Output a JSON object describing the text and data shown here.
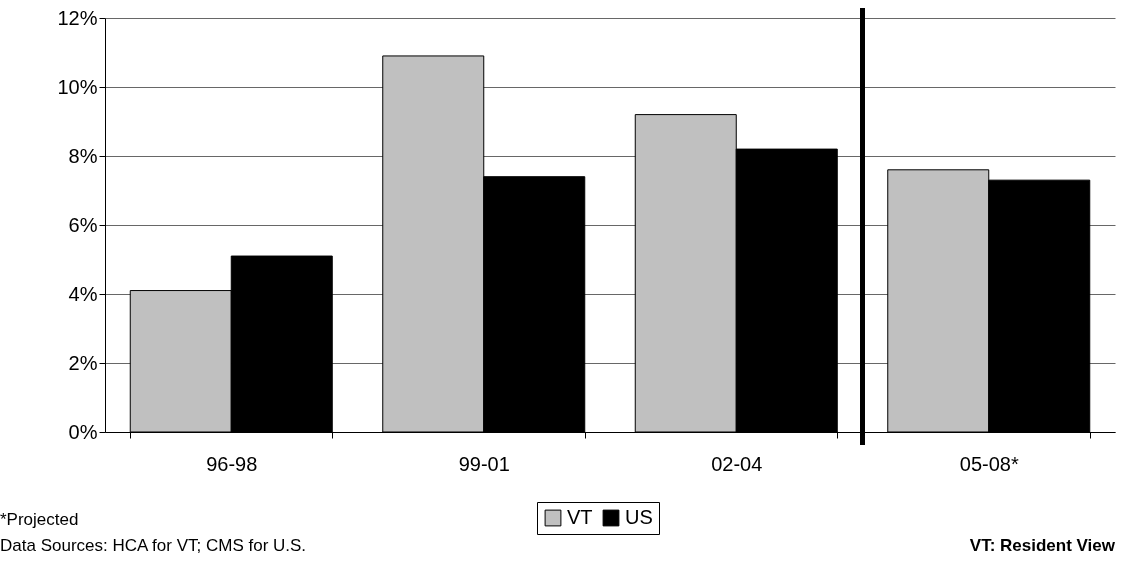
{
  "chart_data": {
    "type": "bar",
    "categories": [
      "96-98",
      "99-01",
      "02-04",
      "05-08*"
    ],
    "series": [
      {
        "name": "VT",
        "color": "#c0c0c0",
        "values": [
          4.1,
          10.9,
          9.2,
          7.6
        ]
      },
      {
        "name": "US",
        "color": "#000000",
        "values": [
          5.1,
          7.4,
          8.2,
          7.3
        ]
      }
    ],
    "ylim": [
      0,
      12
    ],
    "yticks": [
      {
        "value": 0,
        "label": "0%"
      },
      {
        "value": 2,
        "label": "2%"
      },
      {
        "value": 4,
        "label": "4%"
      },
      {
        "value": 6,
        "label": "6%"
      },
      {
        "value": 8,
        "label": "8%"
      },
      {
        "value": 10,
        "label": "10%"
      },
      {
        "value": 12,
        "label": "12%"
      }
    ],
    "ref_lines": [
      {
        "axis": "x",
        "value": "05-08*",
        "color": "#000000",
        "line_style": "solid"
      }
    ],
    "grid": "y",
    "legend": "bottom",
    "annotations": [
      "*Projected",
      "Data Sources: HCA for VT; CMS for U.S.",
      "VT: Resident View"
    ]
  }
}
